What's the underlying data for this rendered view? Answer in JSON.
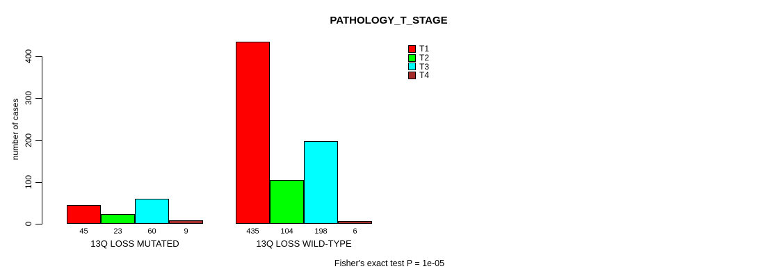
{
  "title": "PATHOLOGY_T_STAGE",
  "y_axis": {
    "label": "number of cases",
    "ticks": [
      0,
      100,
      200,
      300,
      400
    ]
  },
  "footnote": "Fisher's exact test P = 1e-05",
  "legend": {
    "items": [
      {
        "label": "T1",
        "color": "#ff0000"
      },
      {
        "label": "T2",
        "color": "#00ff00"
      },
      {
        "label": "T3",
        "color": "#00ffff"
      },
      {
        "label": "T4",
        "color": "#a52a2a"
      }
    ]
  },
  "chart_data": {
    "type": "bar",
    "title": "PATHOLOGY_T_STAGE",
    "xlabel": "",
    "ylabel": "number of cases",
    "ylim": [
      0,
      440
    ],
    "yticks": [
      0,
      100,
      200,
      300,
      400
    ],
    "grid": false,
    "legend_position": "top-right",
    "categories": [
      "13Q LOSS MUTATED",
      "13Q LOSS WILD-TYPE"
    ],
    "series": [
      {
        "name": "T1",
        "color": "#ff0000",
        "values": [
          45,
          435
        ]
      },
      {
        "name": "T2",
        "color": "#00ff00",
        "values": [
          23,
          104
        ]
      },
      {
        "name": "T3",
        "color": "#00ffff",
        "values": [
          60,
          198
        ]
      },
      {
        "name": "T4",
        "color": "#a52a2a",
        "values": [
          9,
          6
        ]
      }
    ],
    "bar_value_labels": [
      [
        45,
        23,
        60,
        9
      ],
      [
        435,
        104,
        198,
        6
      ]
    ],
    "annotation": "Fisher's exact test P = 1e-05"
  }
}
